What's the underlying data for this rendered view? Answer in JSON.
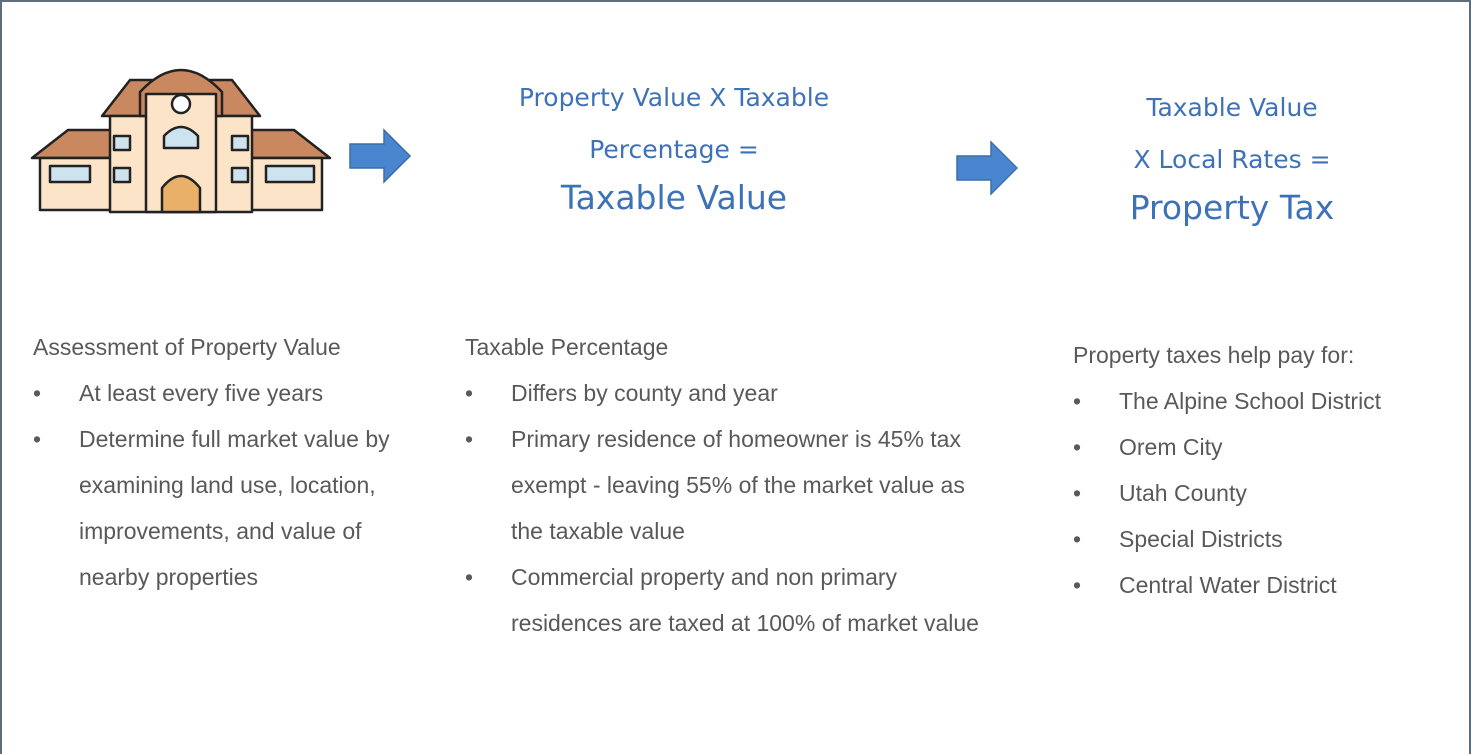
{
  "formulas": [
    {
      "lines": [
        "Property Value X Taxable",
        "Percentage ="
      ],
      "result": "Taxable Value"
    },
    {
      "lines": [
        "Taxable Value",
        "X Local Rates ="
      ],
      "result": "Property Tax"
    }
  ],
  "columns": [
    {
      "heading": "Assessment of Property Value",
      "bullets": [
        "At least every five years",
        "Determine full market value by examining land use, location, improvements, and value of nearby properties"
      ]
    },
    {
      "heading": "Taxable Percentage",
      "bullets": [
        "Differs by county and year",
        "Primary residence of homeowner is 45% tax exempt - leaving 55% of the market value as the taxable value",
        "Commercial property and non primary residences are taxed at 100% of market value"
      ]
    },
    {
      "heading": "Property taxes help pay for:",
      "bullets": [
        "The Alpine School District",
        "Orem City",
        "Utah County",
        "Special Districts",
        "Central Water District"
      ]
    }
  ]
}
